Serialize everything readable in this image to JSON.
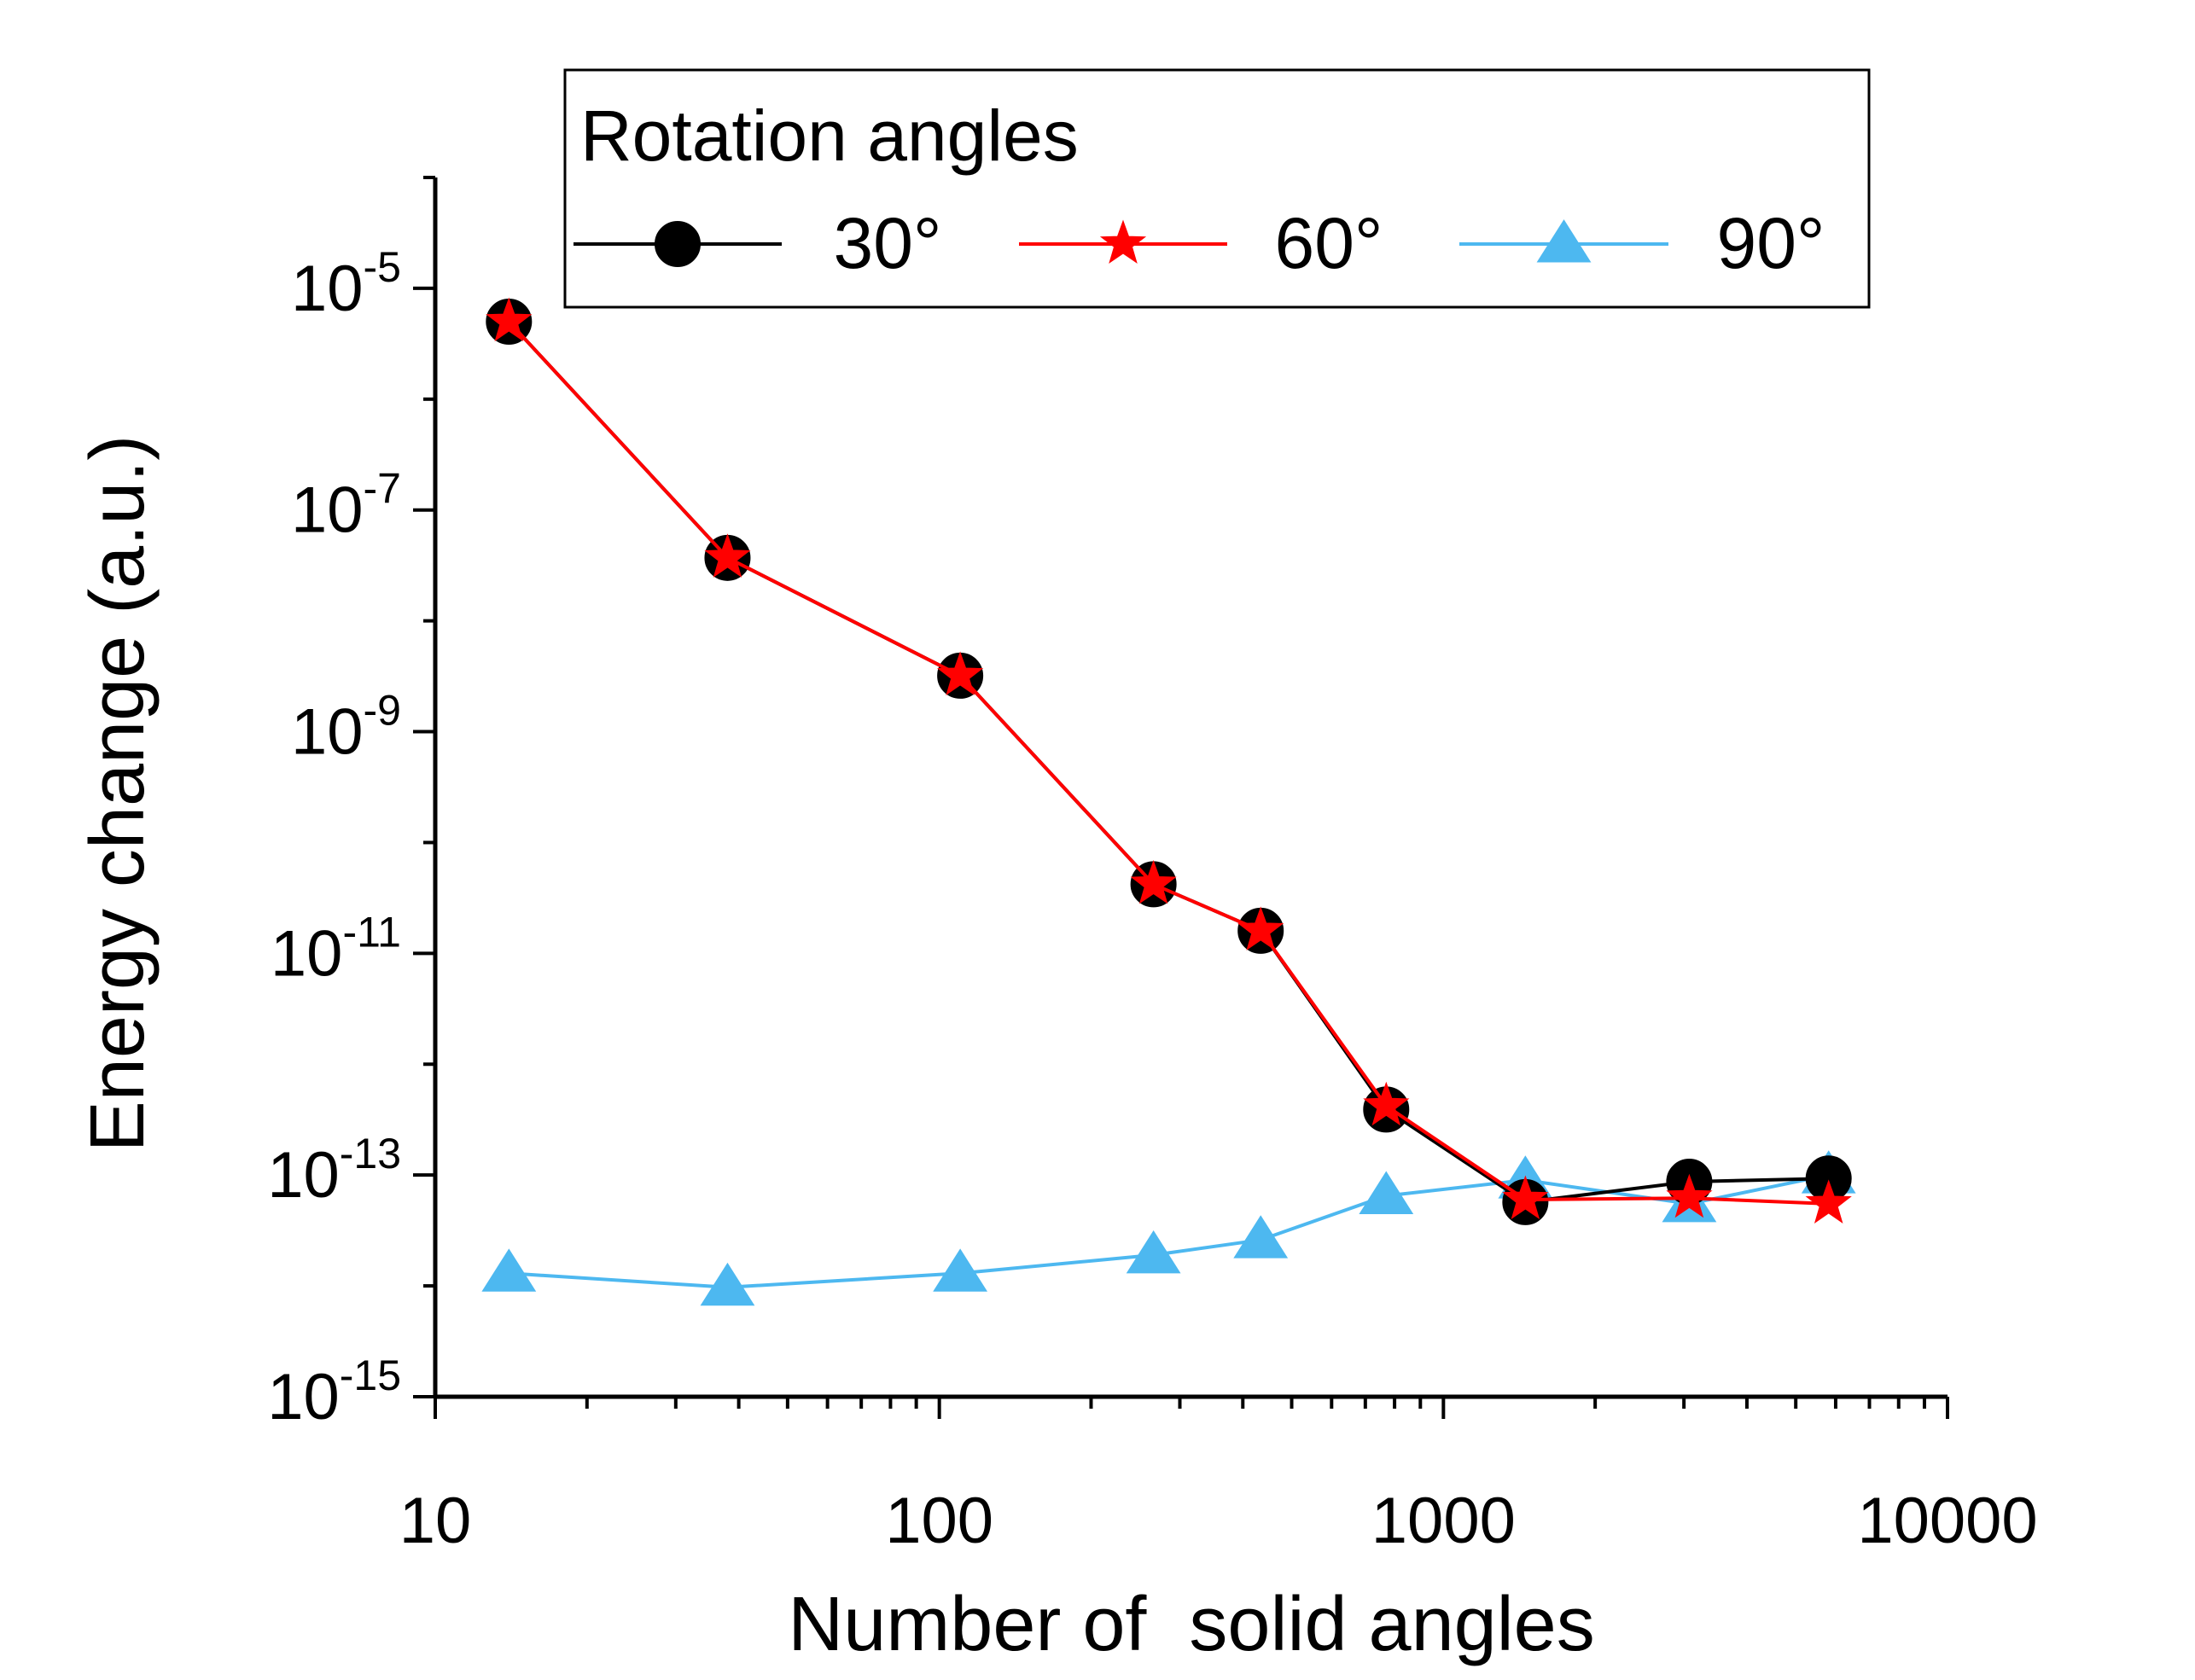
{
  "chart_data": {
    "type": "line",
    "title": "",
    "xlabel": "Number of  solid angles",
    "ylabel": "Energy change (a.u.)",
    "x_scale": "log",
    "y_scale": "log",
    "xlim": [
      10,
      10000
    ],
    "ylim": [
      1e-15,
      0.0001
    ],
    "x_tick_labels": [
      {
        "value": 10,
        "label": "10"
      },
      {
        "value": 100,
        "label": "100"
      },
      {
        "value": 1000,
        "label": "1000"
      },
      {
        "value": 10000,
        "label": "10000"
      }
    ],
    "y_tick_labels": [
      {
        "value": 1e-05,
        "base": "10",
        "exp": "-5"
      },
      {
        "value": 1e-07,
        "base": "10",
        "exp": "-7"
      },
      {
        "value": 1e-09,
        "base": "10",
        "exp": "-9"
      },
      {
        "value": 1e-11,
        "base": "10",
        "exp": "-11"
      },
      {
        "value": 1e-13,
        "base": "10",
        "exp": "-13"
      },
      {
        "value": 1e-15,
        "base": "10",
        "exp": "-15"
      }
    ],
    "legend": {
      "title": "Rotation angles",
      "position": "top-right"
    },
    "x": [
      14,
      38,
      110,
      266,
      434,
      770,
      1454,
      3074,
      5810
    ],
    "series": [
      {
        "name": "90°",
        "color": "#4db8f0",
        "marker": "triangle",
        "values": [
          1.3e-14,
          9.7e-15,
          1.3e-14,
          1.9e-14,
          2.6e-14,
          6.5e-14,
          9e-14,
          5.5e-14,
          1e-13
        ]
      },
      {
        "name": "30°",
        "color": "#000000",
        "marker": "circle",
        "values": [
          5e-06,
          3.7e-08,
          3.2e-09,
          4.2e-11,
          1.6e-11,
          3.9e-13,
          5.7e-14,
          8.7e-14,
          9.3e-14
        ]
      },
      {
        "name": "60°",
        "color": "#ff0000",
        "marker": "star",
        "values": [
          5e-06,
          3.7e-08,
          3.2e-09,
          4.2e-11,
          1.6e-11,
          4.2e-13,
          6e-14,
          6.2e-14,
          5.5e-14
        ]
      }
    ],
    "legend_order": [
      "30°",
      "60°",
      "90°"
    ]
  }
}
